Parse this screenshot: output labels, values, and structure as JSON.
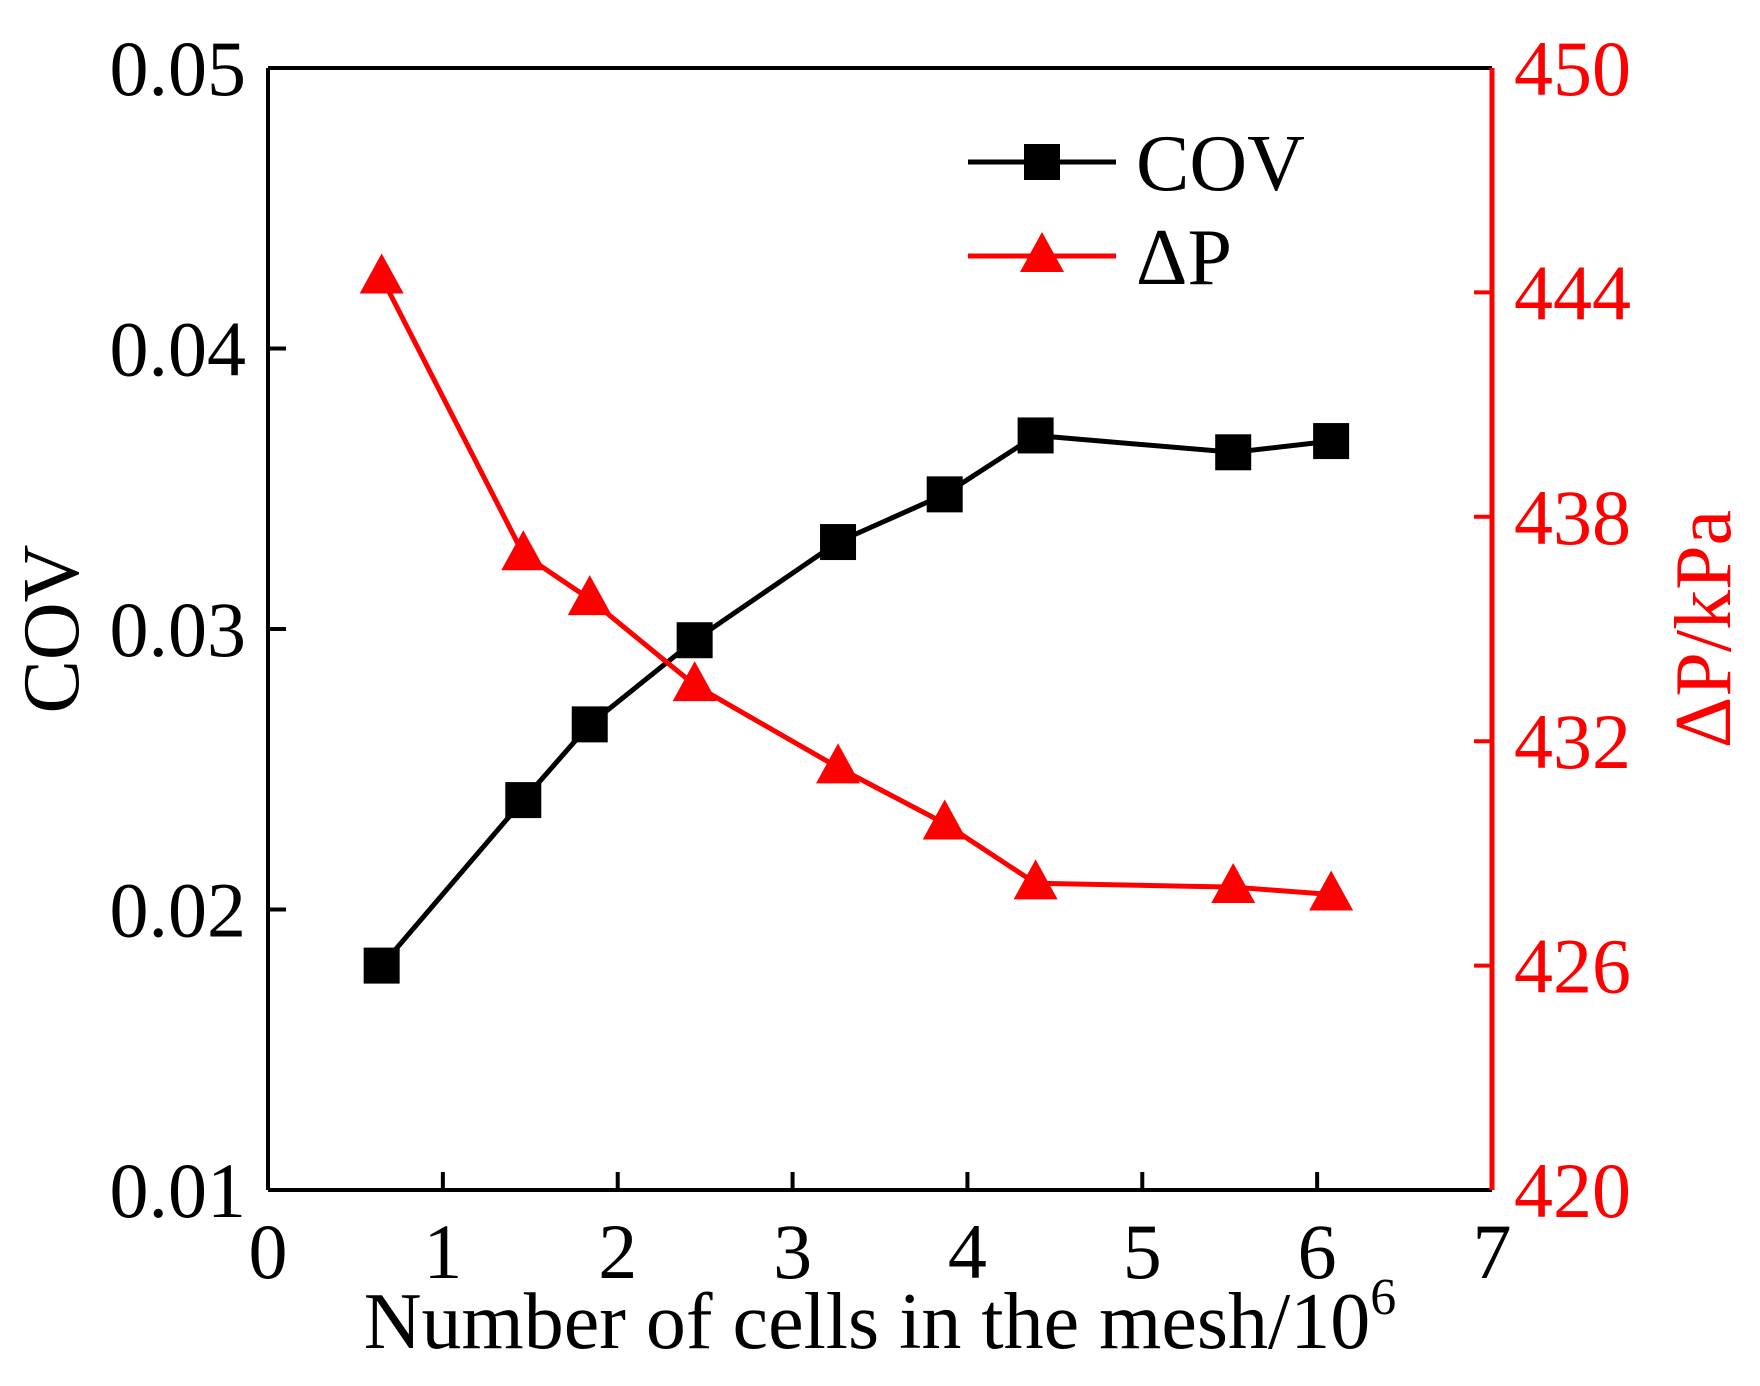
{
  "chart_data": {
    "type": "line",
    "title": "",
    "xlabel": "Number of cells in the mesh/10",
    "xlabel_superscript": "6",
    "ylabel_left": "COV",
    "ylabel_right": "ΔP/kPa",
    "xlim": [
      0,
      7
    ],
    "ylim_left": [
      0.01,
      0.05
    ],
    "ylim_right": [
      420,
      450
    ],
    "x_ticks": [
      "0",
      "1",
      "2",
      "3",
      "4",
      "5",
      "6",
      "7"
    ],
    "y_left_ticks": [
      "0.01",
      "0.02",
      "0.03",
      "0.04",
      "0.05"
    ],
    "y_right_ticks": [
      "420",
      "426",
      "432",
      "438",
      "444",
      "450"
    ],
    "legend_position": "top-right",
    "series": [
      {
        "name": "COV",
        "axis": "left",
        "color": "#000000",
        "marker": "square",
        "x": [
          0.65,
          1.46,
          1.84,
          2.44,
          3.26,
          3.87,
          4.39,
          5.52,
          6.08
        ],
        "values": [
          0.018,
          0.0239,
          0.0266,
          0.0296,
          0.0331,
          0.0348,
          0.0369,
          0.0363,
          0.0367
        ]
      },
      {
        "name": "ΔP",
        "axis": "right",
        "color": "#ff0000",
        "marker": "triangle",
        "x": [
          0.65,
          1.46,
          1.84,
          2.44,
          3.26,
          3.87,
          4.39,
          5.52,
          6.08
        ],
        "values": [
          444.4,
          437.0,
          435.8,
          433.5,
          431.3,
          429.8,
          428.2,
          428.1,
          427.9
        ]
      }
    ]
  }
}
